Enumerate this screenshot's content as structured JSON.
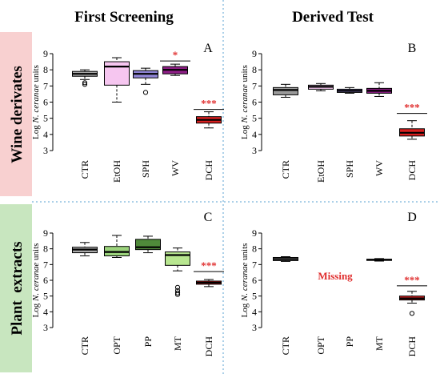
{
  "headers": {
    "left": "First Screening",
    "right": "Derived Test"
  },
  "row_labels": {
    "top": "Wine derivates",
    "bottom": "Plant  extracts"
  },
  "colors": {
    "row_top_bg": "#f8d0d0",
    "row_bottom_bg": "#c8e6bf",
    "divider": "#5aa0d0",
    "significance": "#e03030"
  },
  "chart_data": [
    {
      "type": "box",
      "panel": "A",
      "ylabel_prefix": "Log ",
      "ylabel_italic": "N. ceranae",
      "ylabel_suffix": " units",
      "ylim": [
        3,
        9
      ],
      "yticks": [
        3,
        4,
        5,
        6,
        7,
        8,
        9
      ],
      "categories": [
        "CTR",
        "EtOH",
        "SPH",
        "WV",
        "DCH"
      ],
      "boxes": [
        {
          "min": 7.4,
          "q1": 7.6,
          "median": 7.75,
          "q3": 7.9,
          "max": 8.0,
          "outliers": [
            7.1,
            7.2
          ],
          "color": "#aaaaaa"
        },
        {
          "min": 6.0,
          "q1": 7.05,
          "median": 8.2,
          "q3": 8.5,
          "max": 8.75,
          "outliers": [],
          "color": "#f6c6f0"
        },
        {
          "min": 7.1,
          "q1": 7.5,
          "median": 7.75,
          "q3": 7.95,
          "max": 8.1,
          "outliers": [
            6.6
          ],
          "color": "#9085d6"
        },
        {
          "min": 7.65,
          "q1": 7.75,
          "median": 8.0,
          "q3": 8.2,
          "max": 8.35,
          "outliers": [],
          "color": "#8e1e86"
        },
        {
          "min": 4.4,
          "q1": 4.7,
          "median": 4.9,
          "q3": 5.1,
          "max": 5.4,
          "outliers": [],
          "color": "#d82020"
        }
      ],
      "significance": [
        {
          "label": "*",
          "category": "WV",
          "y": 8.55
        },
        {
          "label": "***",
          "category": "DCH",
          "y": 5.55
        }
      ]
    },
    {
      "type": "box",
      "panel": "B",
      "ylabel_prefix": "Log ",
      "ylabel_italic": "N. ceranae",
      "ylabel_suffix": " units",
      "ylim": [
        3,
        9
      ],
      "yticks": [
        3,
        4,
        5,
        6,
        7,
        8,
        9
      ],
      "categories": [
        "CTR",
        "EtOH",
        "SPH",
        "WV",
        "DCH"
      ],
      "boxes": [
        {
          "min": 6.3,
          "q1": 6.45,
          "median": 6.75,
          "q3": 6.9,
          "max": 7.1,
          "outliers": [],
          "color": "#9a9a9a"
        },
        {
          "min": 6.7,
          "q1": 6.8,
          "median": 6.95,
          "q3": 7.05,
          "max": 7.15,
          "outliers": [],
          "color": "#f6c6f0"
        },
        {
          "min": 6.55,
          "q1": 6.6,
          "median": 6.7,
          "q3": 6.8,
          "max": 6.9,
          "outliers": [],
          "color": "#9085d6"
        },
        {
          "min": 6.35,
          "q1": 6.55,
          "median": 6.7,
          "q3": 6.85,
          "max": 7.2,
          "outliers": [],
          "color": "#8e1e86"
        },
        {
          "min": 3.7,
          "q1": 3.9,
          "median": 4.1,
          "q3": 4.35,
          "max": 4.85,
          "outliers": [],
          "color": "#d82020"
        }
      ],
      "significance": [
        {
          "label": "***",
          "category": "DCH",
          "y": 5.3
        }
      ]
    },
    {
      "type": "box",
      "panel": "C",
      "ylabel_prefix": "Log ",
      "ylabel_italic": "N. ceranae",
      "ylabel_suffix": " units",
      "ylim": [
        3,
        9
      ],
      "yticks": [
        3,
        4,
        5,
        6,
        7,
        8,
        9
      ],
      "categories": [
        "CTR",
        "OPT",
        "PP",
        "MT",
        "DCH"
      ],
      "boxes": [
        {
          "min": 7.55,
          "q1": 7.75,
          "median": 7.95,
          "q3": 8.1,
          "max": 8.4,
          "outliers": [],
          "color": "#aaaaaa"
        },
        {
          "min": 7.45,
          "q1": 7.55,
          "median": 7.8,
          "q3": 8.15,
          "max": 8.85,
          "outliers": [],
          "color": "#9bd37c"
        },
        {
          "min": 7.75,
          "q1": 7.95,
          "median": 8.1,
          "q3": 8.6,
          "max": 8.8,
          "outliers": [],
          "color": "#4f8a3a"
        },
        {
          "min": 6.6,
          "q1": 6.95,
          "median": 7.6,
          "q3": 7.8,
          "max": 8.05,
          "outliers": [
            5.1,
            5.2,
            5.35,
            5.55
          ],
          "color": "#b8e690"
        },
        {
          "min": 5.6,
          "q1": 5.75,
          "median": 5.85,
          "q3": 5.95,
          "max": 6.05,
          "outliers": [],
          "color": "#d82020"
        }
      ],
      "significance": [
        {
          "label": "***",
          "category": "DCH",
          "y": 6.55
        }
      ]
    },
    {
      "type": "box",
      "panel": "D",
      "ylabel_prefix": "Log ",
      "ylabel_italic": "N. ceranae",
      "ylabel_suffix": " units",
      "ylim": [
        3,
        9
      ],
      "yticks": [
        3,
        4,
        5,
        6,
        7,
        8,
        9
      ],
      "categories": [
        "CTR",
        "OPT",
        "PP",
        "MT",
        "DCH"
      ],
      "boxes": [
        {
          "min": 7.2,
          "q1": 7.25,
          "median": 7.35,
          "q3": 7.45,
          "max": 7.5,
          "outliers": [],
          "color": "#9a9a9a"
        },
        null,
        null,
        {
          "min": 7.22,
          "q1": 7.26,
          "median": 7.3,
          "q3": 7.34,
          "max": 7.38,
          "outliers": [],
          "color": "#9a9a9a"
        },
        {
          "min": 4.55,
          "q1": 4.75,
          "median": 4.85,
          "q3": 5.0,
          "max": 5.3,
          "outliers": [
            3.9
          ],
          "color": "#d82020"
        }
      ],
      "annotation": "Missing",
      "significance": [
        {
          "label": "***",
          "category": "DCH",
          "y": 5.65
        }
      ]
    }
  ]
}
